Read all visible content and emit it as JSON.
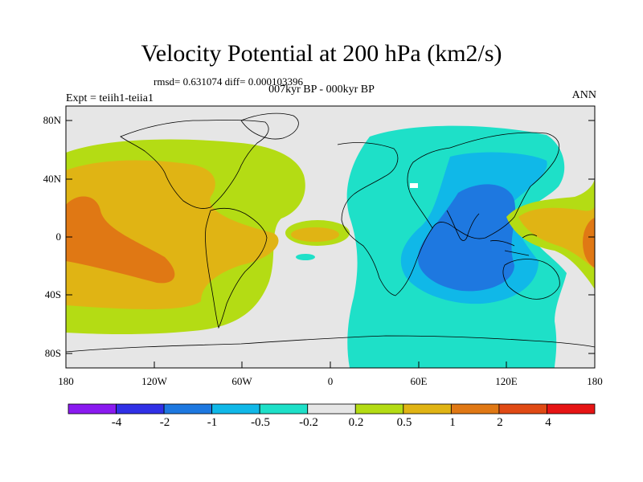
{
  "plot": {
    "title": "Velocity Potential at 200 hPa (km2/s)",
    "stats": "rmsd= 0.631074 diff= 0.000103396",
    "period": "007kyr BP - 000kyr BP",
    "experiment": "Expt = teiih1-teiia1",
    "season": "ANN"
  },
  "axes": {
    "lat_labels": [
      "80N",
      "40N",
      "0",
      "40S",
      "80S"
    ],
    "lon_labels": [
      "180",
      "120W",
      "60W",
      "0",
      "60E",
      "120E",
      "180"
    ]
  },
  "colorbar": {
    "labels": [
      "-4",
      "-2",
      "-1",
      "-0.5",
      "-0.2",
      "0.2",
      "0.5",
      "1",
      "2",
      "4"
    ],
    "colors": [
      "#8a1af0",
      "#3030e6",
      "#1e78e0",
      "#10b8e8",
      "#1ee0c8",
      "#e6e6e6",
      "#b4dc14",
      "#e0b414",
      "#e07814",
      "#e04a14",
      "#e61414"
    ]
  },
  "chart_data": {
    "type": "heatmap",
    "title": "Velocity Potential at 200 hPa (km2/s)",
    "levels": [
      -4,
      -2,
      -1,
      -0.5,
      -0.2,
      0.2,
      0.5,
      1,
      2,
      4
    ],
    "xlim": [
      -180,
      180
    ],
    "ylim": [
      -90,
      90
    ]
  }
}
